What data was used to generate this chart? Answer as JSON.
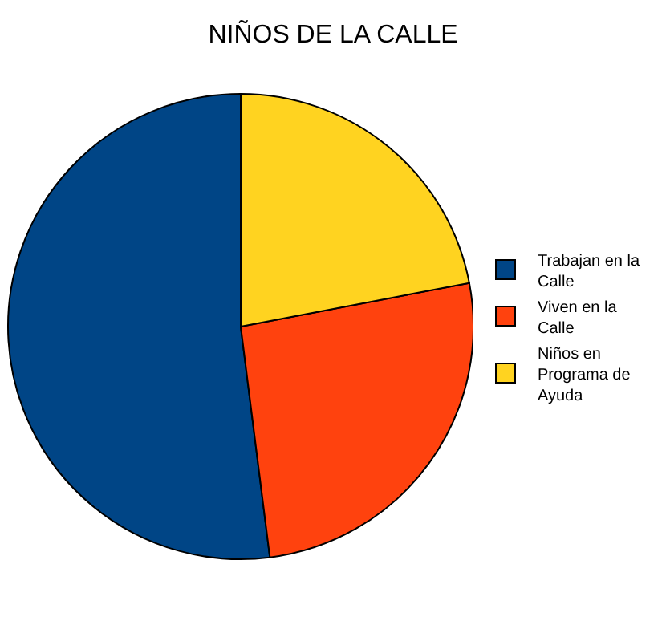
{
  "chart_data": {
    "type": "pie",
    "title": "NIÑOS DE LA CALLE",
    "categories": [
      "Trabajan en la Calle",
      "Viven en la Calle",
      "Niños en Programa de Ayuda"
    ],
    "values": [
      52,
      26,
      22
    ],
    "colors": [
      "#004586",
      "#ff420e",
      "#ffd320"
    ],
    "legend": "right"
  }
}
